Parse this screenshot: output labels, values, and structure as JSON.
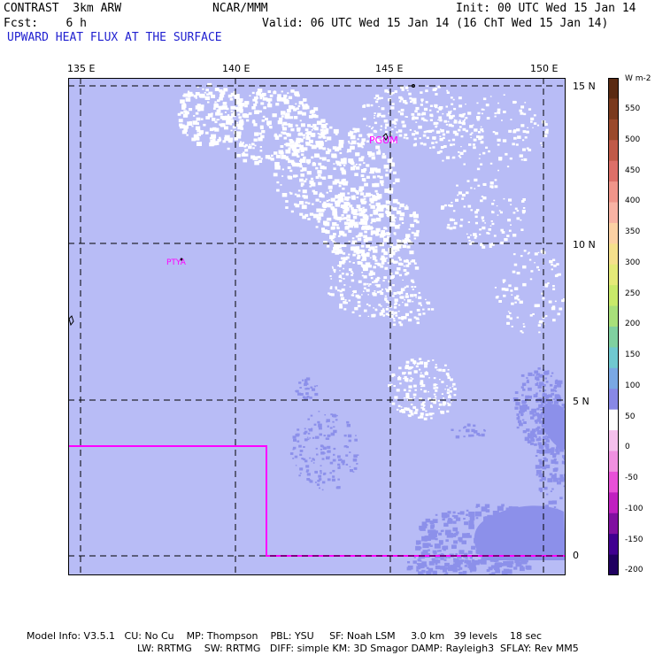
{
  "header": {
    "model": "CONTRAST  3km ARW",
    "center": "NCAR/MMM",
    "init": "Init: 00 UTC Wed 15 Jan 14",
    "fcst": "Fcst:    6 h",
    "valid": "Valid: 06 UTC Wed 15 Jan 14 (16 ChT Wed 15 Jan 14)",
    "field": "UPWARD HEAT FLUX AT THE SURFACE"
  },
  "map": {
    "lon_labels": [
      "135 E",
      "140 E",
      "145 E",
      "150 E"
    ],
    "lat_labels": [
      "15 N",
      "10 N",
      "5 N",
      "0"
    ],
    "stations": [
      {
        "name": "PGUM"
      },
      {
        "name": "PTYA"
      }
    ],
    "colors": {
      "background": "#b8bcf6",
      "light_flux": "#8c90ea",
      "zero_flux": "#ffffff",
      "domain_line": "#ff00ff"
    }
  },
  "colorbar": {
    "units": "W m-2",
    "ticks": [
      "550",
      "500",
      "450",
      "400",
      "350",
      "300",
      "250",
      "200",
      "150",
      "100",
      "50",
      "0",
      "-50",
      "-100",
      "-150",
      "-200"
    ],
    "colors": [
      "#5a2a12",
      "#7a3a1e",
      "#9a4a2c",
      "#c05a48",
      "#dd6f68",
      "#f0958a",
      "#f8b3a4",
      "#fcd1a4",
      "#f5e08c",
      "#e4ea78",
      "#c8ea6a",
      "#a8e07a",
      "#80d0a0",
      "#70c8d0",
      "#7aa8e4",
      "#8888e6",
      "#ffffff",
      "#f4c0ec",
      "#f090e0",
      "#e850d8",
      "#c020c0",
      "#8010a0",
      "#400090",
      "#200060"
    ]
  },
  "footer": {
    "line1": "Model Info: V3.5.1   CU: No Cu    MP: Thompson    PBL: YSU     SF: Noah LSM     3.0 km   39 levels    18 sec",
    "line2": "LW: RRTMG    SW: RRTMG   DIFF: simple KM: 3D Smagor DAMP: Rayleigh3  SFLAY: Rev MM5"
  }
}
